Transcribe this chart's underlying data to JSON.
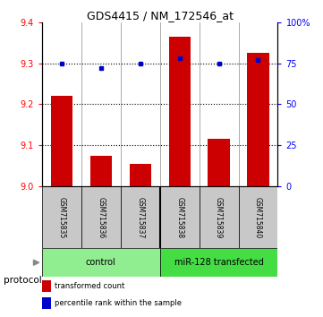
{
  "title": "GDS4415 / NM_172546_at",
  "samples": [
    "GSM715835",
    "GSM715836",
    "GSM715837",
    "GSM715838",
    "GSM715839",
    "GSM715840"
  ],
  "red_values": [
    9.22,
    9.075,
    9.055,
    9.365,
    9.115,
    9.325
  ],
  "blue_values": [
    75,
    72,
    75,
    78,
    75,
    77
  ],
  "ylim_left": [
    9.0,
    9.4
  ],
  "ylim_right": [
    0,
    100
  ],
  "yticks_left": [
    9.0,
    9.1,
    9.2,
    9.3,
    9.4
  ],
  "yticks_right": [
    0,
    25,
    50,
    75,
    100
  ],
  "ytick_labels_right": [
    "0",
    "25",
    "50",
    "75",
    "100%"
  ],
  "dotted_lines": [
    9.1,
    9.2,
    9.3
  ],
  "bar_color": "#CC0000",
  "dot_color": "#0000CC",
  "bar_width": 0.55,
  "bar_base": 9.0,
  "ctrl_color": "#90EE90",
  "mir_color": "#44DD44",
  "sample_box_color": "#C8C8C8",
  "legend_red_label": "transformed count",
  "legend_blue_label": "percentile rank within the sample",
  "ctrl_label": "control",
  "mir_label": "miR-128 transfected",
  "protocol_label": "protocol"
}
